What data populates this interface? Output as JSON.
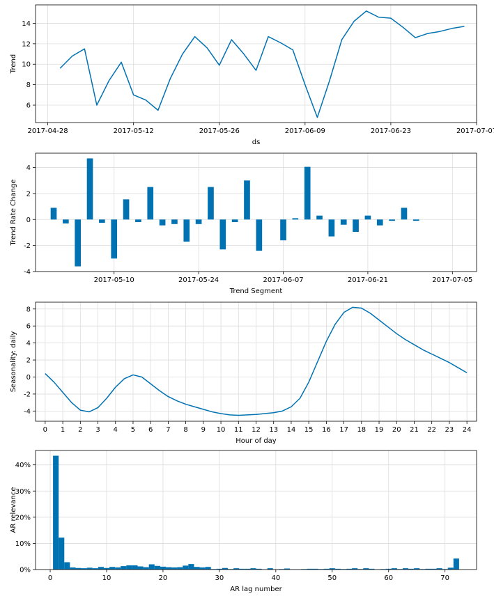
{
  "colors": {
    "series": "#0072b2",
    "grid": "#dcdcdc",
    "axis": "#000000"
  },
  "chart_data": [
    {
      "type": "line",
      "xlabel": "ds",
      "ylabel": "Trend",
      "x_ticks": [
        "2017-04-28",
        "2017-05-12",
        "2017-05-26",
        "2017-06-09",
        "2017-06-23",
        "2017-07-07"
      ],
      "y_ticks": [
        "6",
        "8",
        "10",
        "12",
        "14"
      ],
      "xlim": [
        "2017-04-26",
        "2017-07-07"
      ],
      "ylim": [
        4.3,
        15.8
      ],
      "grid": true,
      "x": [
        "2017-04-30",
        "2017-05-02",
        "2017-05-04",
        "2017-05-06",
        "2017-05-08",
        "2017-05-10",
        "2017-05-12",
        "2017-05-14",
        "2017-05-16",
        "2017-05-18",
        "2017-05-20",
        "2017-05-22",
        "2017-05-24",
        "2017-05-26",
        "2017-05-28",
        "2017-05-30",
        "2017-06-01",
        "2017-06-03",
        "2017-06-05",
        "2017-06-07",
        "2017-06-09",
        "2017-06-11",
        "2017-06-13",
        "2017-06-15",
        "2017-06-17",
        "2017-06-19",
        "2017-06-21",
        "2017-06-23",
        "2017-06-25",
        "2017-06-27",
        "2017-06-29",
        "2017-07-01",
        "2017-07-03",
        "2017-07-05"
      ],
      "y": [
        9.6,
        10.8,
        11.5,
        6.0,
        8.4,
        10.2,
        7.0,
        6.5,
        5.5,
        8.6,
        11.0,
        12.7,
        11.6,
        9.9,
        12.4,
        11.0,
        9.4,
        12.7,
        12.1,
        11.4,
        8.0,
        4.8,
        8.4,
        12.4,
        14.2,
        15.2,
        14.6,
        14.5,
        13.6,
        12.6,
        13.0,
        13.2,
        13.5,
        13.7
      ]
    },
    {
      "type": "bar",
      "xlabel": "Trend Segment",
      "ylabel": "Trend Rate Change",
      "x_ticks": [
        "2017-05-10",
        "2017-05-24",
        "2017-06-07",
        "2017-06-21",
        "2017-07-05"
      ],
      "y_ticks": [
        "-4",
        "-2",
        "0",
        "2",
        "4"
      ],
      "xlim": [
        "2017-04-27",
        "2017-07-09"
      ],
      "ylim": [
        -4.0,
        5.1
      ],
      "grid": true,
      "x": [
        "2017-04-30",
        "2017-05-02",
        "2017-05-04",
        "2017-05-06",
        "2017-05-08",
        "2017-05-10",
        "2017-05-12",
        "2017-05-14",
        "2017-05-16",
        "2017-05-18",
        "2017-05-20",
        "2017-05-22",
        "2017-05-24",
        "2017-05-26",
        "2017-05-28",
        "2017-05-30",
        "2017-06-01",
        "2017-06-03",
        "2017-06-05",
        "2017-06-07",
        "2017-06-09",
        "2017-06-11",
        "2017-06-13",
        "2017-06-15",
        "2017-06-17",
        "2017-06-19",
        "2017-06-21",
        "2017-06-23",
        "2017-06-25",
        "2017-06-27",
        "2017-06-29",
        "2017-07-01"
      ],
      "values": [
        0.9,
        -0.3,
        -3.6,
        4.7,
        -0.25,
        -3.0,
        1.55,
        -0.2,
        2.5,
        -0.45,
        -0.35,
        -1.7,
        -0.35,
        2.5,
        -2.3,
        -0.2,
        3.0,
        -2.4,
        0.0,
        -1.6,
        0.1,
        4.05,
        0.3,
        -1.3,
        -0.4,
        -0.95,
        0.3,
        -0.45,
        -0.1,
        0.9,
        -0.1,
        0.0
      ]
    },
    {
      "type": "line",
      "xlabel": "Hour of day",
      "ylabel": "Seasonality: daily",
      "x_ticks": [
        "0",
        "1",
        "2",
        "3",
        "4",
        "5",
        "6",
        "7",
        "8",
        "9",
        "10",
        "11",
        "12",
        "13",
        "14",
        "15",
        "16",
        "17",
        "18",
        "19",
        "20",
        "21",
        "22",
        "23",
        "24"
      ],
      "y_ticks": [
        "-4",
        "-2",
        "0",
        "2",
        "4",
        "6",
        "8"
      ],
      "xlim": [
        -0.55,
        24.55
      ],
      "ylim": [
        -5.2,
        8.8
      ],
      "grid": true,
      "x": [
        0,
        0.5,
        1,
        1.5,
        2,
        2.5,
        3,
        3.5,
        4,
        4.5,
        5,
        5.5,
        6,
        6.5,
        7,
        7.5,
        8,
        8.5,
        9,
        9.5,
        10,
        10.5,
        11,
        11.5,
        12,
        12.5,
        13,
        13.5,
        14,
        14.5,
        15,
        15.5,
        16,
        16.5,
        17,
        17.5,
        18,
        18.5,
        19,
        19.5,
        20,
        20.5,
        21,
        21.5,
        22,
        22.5,
        23,
        23.5,
        24
      ],
      "y": [
        0.4,
        -0.6,
        -1.8,
        -3.0,
        -3.9,
        -4.1,
        -3.6,
        -2.5,
        -1.2,
        -0.2,
        0.25,
        0.0,
        -0.8,
        -1.6,
        -2.3,
        -2.8,
        -3.2,
        -3.5,
        -3.8,
        -4.1,
        -4.3,
        -4.45,
        -4.5,
        -4.45,
        -4.4,
        -4.3,
        -4.2,
        -4.0,
        -3.5,
        -2.5,
        -0.6,
        1.8,
        4.2,
        6.2,
        7.6,
        8.2,
        8.1,
        7.5,
        6.7,
        5.9,
        5.1,
        4.4,
        3.8,
        3.2,
        2.7,
        2.2,
        1.7,
        1.1,
        0.5
      ]
    },
    {
      "type": "bar",
      "xlabel": "AR lag number",
      "ylabel": "AR relevance",
      "x_ticks": [
        "0",
        "10",
        "20",
        "30",
        "40",
        "50",
        "60",
        "70"
      ],
      "y_ticks": [
        "0%",
        "10%",
        "20%",
        "30%",
        "40%"
      ],
      "xlim": [
        -2.6,
        75.6
      ],
      "ylim": [
        0,
        45.5
      ],
      "grid": true,
      "categories": [
        1,
        2,
        3,
        4,
        5,
        6,
        7,
        8,
        9,
        10,
        11,
        12,
        13,
        14,
        15,
        16,
        17,
        18,
        19,
        20,
        21,
        22,
        23,
        24,
        25,
        26,
        27,
        28,
        29,
        30,
        31,
        32,
        33,
        34,
        35,
        36,
        37,
        38,
        39,
        40,
        41,
        42,
        43,
        44,
        45,
        46,
        47,
        48,
        49,
        50,
        51,
        52,
        53,
        54,
        55,
        56,
        57,
        58,
        59,
        60,
        61,
        62,
        63,
        64,
        65,
        66,
        67,
        68,
        69,
        70,
        71,
        72
      ],
      "values": [
        43.5,
        12.2,
        2.8,
        0.8,
        0.6,
        0.5,
        0.7,
        0.5,
        1.0,
        0.6,
        1.0,
        0.8,
        1.3,
        1.6,
        1.6,
        1.2,
        0.9,
        2.0,
        1.4,
        1.1,
        0.9,
        0.8,
        0.9,
        1.5,
        2.1,
        1.0,
        0.8,
        1.0,
        0.2,
        0.3,
        0.6,
        0.2,
        0.5,
        0.3,
        0.3,
        0.5,
        0.3,
        0.1,
        0.5,
        0.1,
        0.2,
        0.4,
        0.1,
        0.1,
        0.2,
        0.3,
        0.3,
        0.2,
        0.3,
        0.5,
        0.3,
        0.2,
        0.3,
        0.5,
        0.2,
        0.5,
        0.3,
        0.1,
        0.2,
        0.3,
        0.5,
        0.2,
        0.5,
        0.3,
        0.5,
        0.2,
        0.3,
        0.3,
        0.5,
        0.2,
        0.7,
        4.2
      ]
    }
  ]
}
